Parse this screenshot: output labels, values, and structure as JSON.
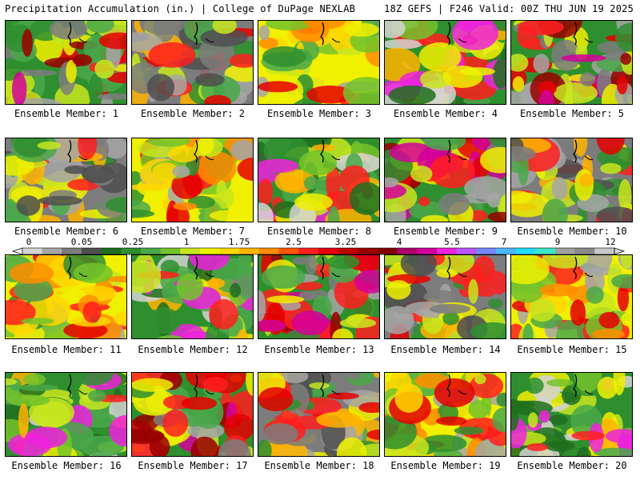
{
  "header": {
    "left": "Precipitation Accumulation (in.) | College of DuPage NEXLAB",
    "right": "18Z GEFS | F246 Valid: 00Z THU JUN 19 2025"
  },
  "panels": [
    {
      "label": "Ensemble Member: 1"
    },
    {
      "label": "Ensemble Member: 2"
    },
    {
      "label": "Ensemble Member: 3"
    },
    {
      "label": "Ensemble Member: 4"
    },
    {
      "label": "Ensemble Member: 5"
    },
    {
      "label": "Ensemble Member: 6"
    },
    {
      "label": "Ensemble Member: 7"
    },
    {
      "label": "Ensemble Member: 8"
    },
    {
      "label": "Ensemble Member: 9"
    },
    {
      "label": "Ensemble Member: 10"
    },
    {
      "label": "Ensemble Member: 11"
    },
    {
      "label": "Ensemble Member: 12"
    },
    {
      "label": "Ensemble Member: 13"
    },
    {
      "label": "Ensemble Member: 14"
    },
    {
      "label": "Ensemble Member: 15"
    },
    {
      "label": "Ensemble Member: 16"
    },
    {
      "label": "Ensemble Member: 17"
    },
    {
      "label": "Ensemble Member: 18"
    },
    {
      "label": "Ensemble Member: 19"
    },
    {
      "label": "Ensemble Member: 20"
    }
  ],
  "colorbar": {
    "tick_labels": [
      "0",
      "0.05",
      "0.25",
      "1",
      "1.75",
      "2.5",
      "3.25",
      "4",
      "5.5",
      "7",
      "9",
      "12"
    ],
    "colors": [
      "#d4d4d4",
      "#a6a6a6",
      "#7c7c7c",
      "#4f4f4f",
      "#1e6e1e",
      "#2f8f2f",
      "#4aa84a",
      "#74c32a",
      "#c8e61e",
      "#f0f000",
      "#ffd700",
      "#ffb400",
      "#ff8c00",
      "#ff5500",
      "#ff1e1e",
      "#e60000",
      "#bf0000",
      "#990000",
      "#800000",
      "#b0006e",
      "#d4009a",
      "#ee22dd",
      "#bb55ff",
      "#7788ff",
      "#4cb6ff",
      "#22ddff",
      "#3ce6c8",
      "#a0a0a0",
      "#8a8a8a",
      "#c8c8c8"
    ]
  }
}
